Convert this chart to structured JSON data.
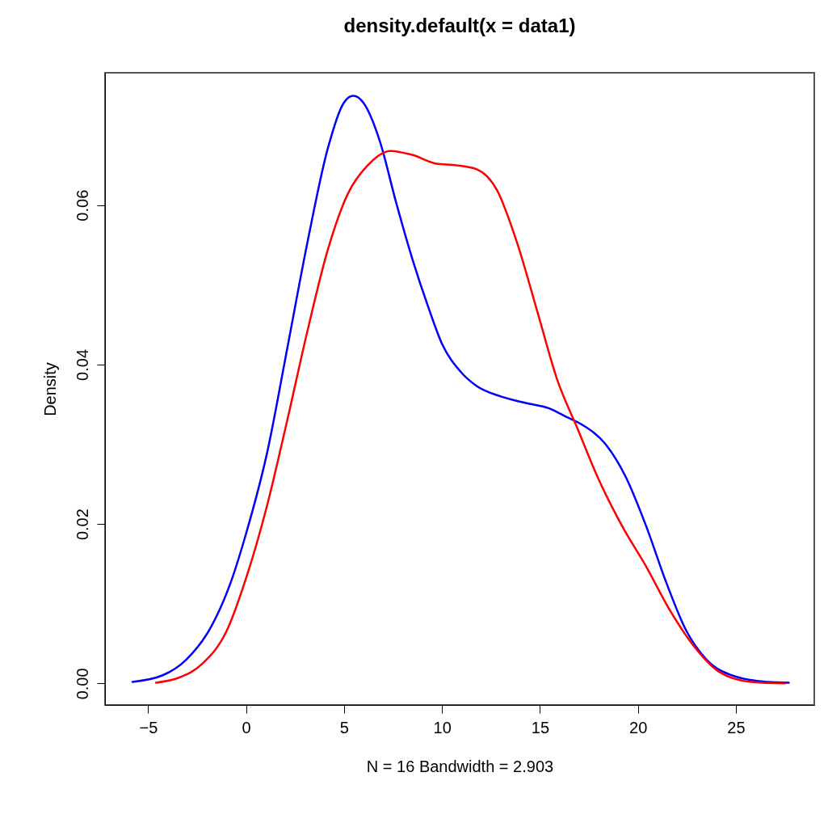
{
  "chart_data": {
    "type": "line",
    "title": "density.default(x = data1)",
    "xlabel": "N = 16   Bandwidth = 2.903",
    "ylabel": "Density",
    "xlim": [
      -7.2,
      29
    ],
    "ylim": [
      -0.0027,
      0.0766
    ],
    "xticks": [
      -5,
      0,
      5,
      10,
      15,
      20,
      25
    ],
    "yticks": [
      {
        "value": 0,
        "label": "0.00"
      },
      {
        "value": 0.02,
        "label": "0.02"
      },
      {
        "value": 0.04,
        "label": "0.04"
      },
      {
        "value": 0.06,
        "label": "0.06"
      }
    ],
    "grid": false,
    "marker": "none",
    "line_style": "solid",
    "series": [
      {
        "color": "#0000ff",
        "x": [
          -5.8,
          -4.28,
          -3.05,
          -1.81,
          -0.78,
          0,
          1.07,
          2.1,
          3.13,
          4.16,
          4.98,
          5.47,
          6.0,
          6.83,
          7.65,
          8.48,
          9.3,
          10,
          10.95,
          11.77,
          13.0,
          14.24,
          15.47,
          16.3,
          17.12,
          18.35,
          19.38,
          20.41,
          21.44,
          22.47,
          23.5,
          24.94,
          26.58,
          27.7
        ],
        "values": [
          0.0002,
          0.001,
          0.003,
          0.007,
          0.0127,
          0.0188,
          0.0289,
          0.042,
          0.0553,
          0.067,
          0.0728,
          0.0737,
          0.0728,
          0.068,
          0.0604,
          0.0533,
          0.0472,
          0.0426,
          0.0391,
          0.0373,
          0.036,
          0.0352,
          0.0345,
          0.0335,
          0.0325,
          0.03,
          0.0259,
          0.0198,
          0.0127,
          0.0066,
          0.003,
          0.0009,
          0.0002,
          0.0001
        ]
      },
      {
        "color": "#ff0000",
        "x": [
          -4.6,
          -3.46,
          -2.22,
          -0.99,
          0,
          1.07,
          2.1,
          3.13,
          4.16,
          5.19,
          6.21,
          7.37,
          8.48,
          9.71,
          10.74,
          11.77,
          12.8,
          13.83,
          14.86,
          15.88,
          16.91,
          17.94,
          19.18,
          20.41,
          21.65,
          22.88,
          24.12,
          25.76,
          27.5
        ],
        "values": [
          0.0001,
          0.0007,
          0.0025,
          0.0066,
          0.0132,
          0.0223,
          0.033,
          0.0442,
          0.0543,
          0.0614,
          0.065,
          0.0668,
          0.0663,
          0.0652,
          0.065,
          0.0645,
          0.0619,
          0.0553,
          0.0467,
          0.0381,
          0.032,
          0.0259,
          0.0198,
          0.0147,
          0.0091,
          0.0046,
          0.0015,
          0.0002,
          0
        ]
      }
    ]
  }
}
